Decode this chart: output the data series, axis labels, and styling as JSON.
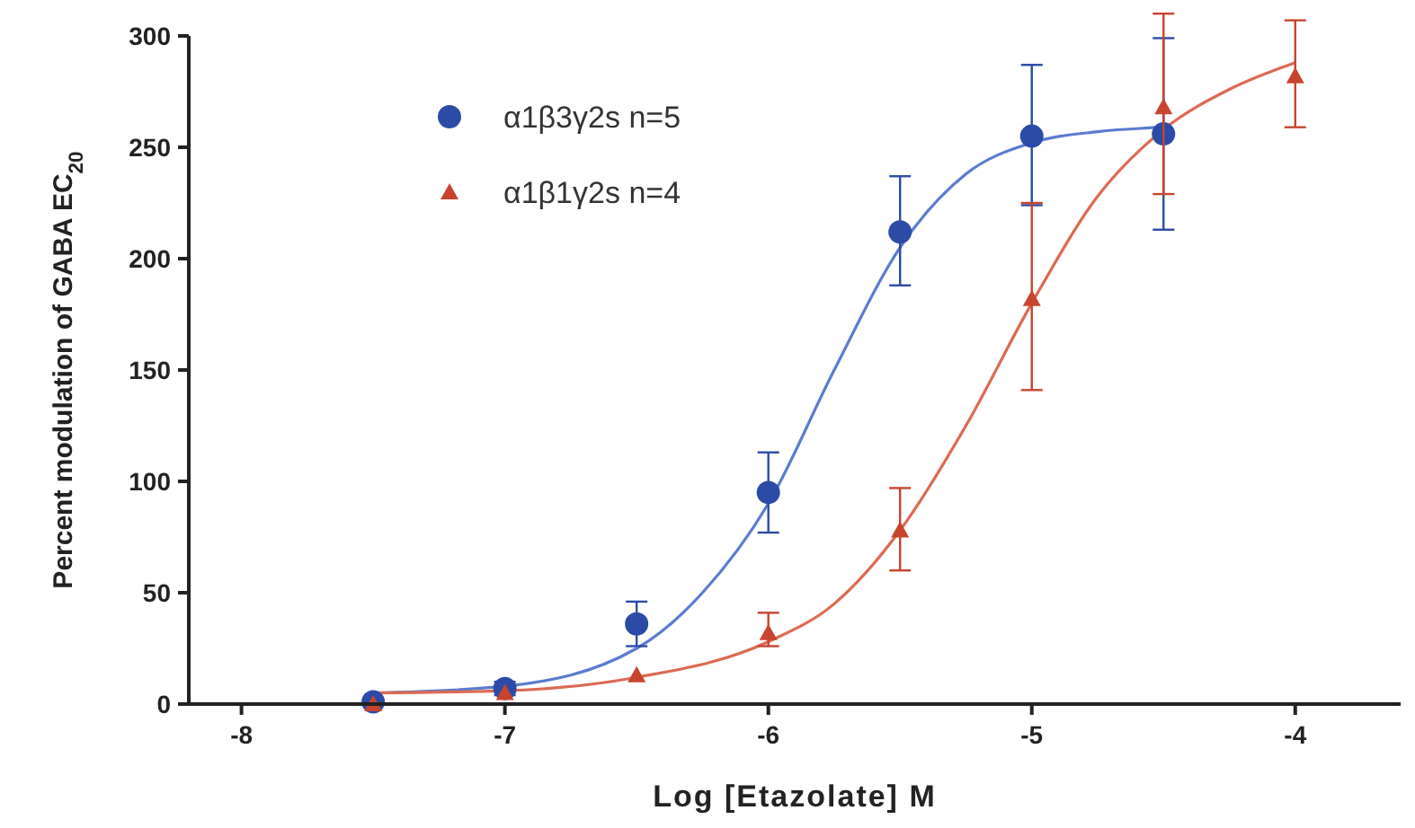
{
  "chart_data": {
    "type": "scatter",
    "xlabel": "Log [Etazolate] M",
    "ylabel": "Percent modulation of GABA EC$_{20}$",
    "xlim": [
      -8.2,
      -3.6
    ],
    "xticks": [
      -8,
      -7,
      -6,
      -5,
      -4
    ],
    "ylim": [
      0,
      300
    ],
    "yticks": [
      0,
      50,
      100,
      150,
      200,
      250,
      300
    ],
    "grid": false,
    "legend": "top left",
    "series": [
      {
        "name": "α1β3γ2s n=5",
        "color": "#2b4ba6",
        "marker": "circle",
        "x": [
          -7.5,
          -7,
          -6.5,
          -6,
          -5.5,
          -5,
          -4.5
        ],
        "values": [
          1,
          7,
          36,
          95,
          212,
          255,
          256
        ],
        "errors": [
          null,
          [
            4,
            10
          ],
          [
            26,
            46
          ],
          [
            77,
            113
          ],
          [
            188,
            237
          ],
          [
            224,
            287
          ],
          [
            213,
            299
          ]
        ]
      },
      {
        "name": "α1β1γ2s n=4",
        "color": "#c8442e",
        "marker": "triangle",
        "x": [
          -7.5,
          -7,
          -6.5,
          -6,
          -5.5,
          -5,
          -4.5,
          -4
        ],
        "values": [
          0,
          5,
          13,
          32,
          78,
          182,
          268,
          282
        ],
        "errors": [
          null,
          null,
          null,
          [
            26,
            41
          ],
          [
            60,
            97
          ],
          [
            141,
            225
          ],
          [
            229,
            310
          ],
          [
            259,
            307
          ]
        ]
      },
      {
        "type": "line",
        "color": "#5a7bd0",
        "marker": "none",
        "x": [
          -7.5,
          -7,
          -6.5,
          -6.25,
          -6,
          -5.75,
          -5.5,
          -5.25,
          -5,
          -4.75,
          -4.5
        ],
        "values": [
          5,
          8,
          25,
          50,
          90,
          150,
          205,
          238,
          252,
          257,
          259
        ]
      },
      {
        "type": "line",
        "color": "#dc6a52",
        "marker": "none",
        "x": [
          -7.5,
          -7,
          -6.5,
          -6,
          -5.75,
          -5.5,
          -5.25,
          -5,
          -4.75,
          -4.5,
          -4.25,
          -4
        ],
        "values": [
          5,
          6,
          12,
          28,
          45,
          78,
          125,
          180,
          228,
          258,
          276,
          288
        ]
      }
    ]
  }
}
